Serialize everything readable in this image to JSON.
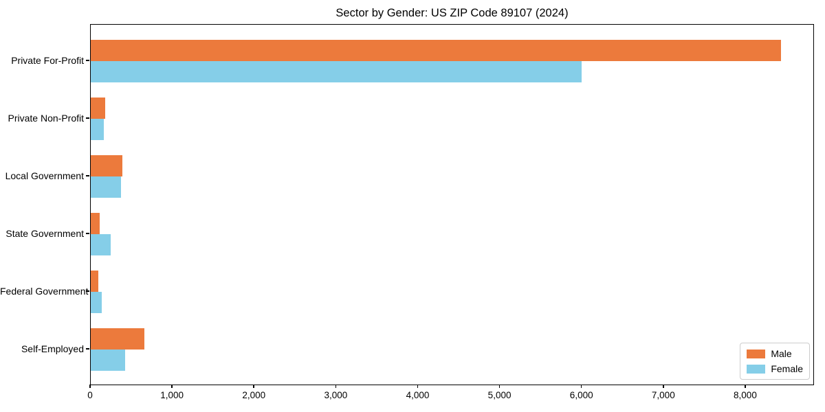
{
  "title": "Sector by Gender: US ZIP Code 89107 (2024)",
  "colors": {
    "male": "#ec7a3c",
    "female": "#85cee8",
    "spine": "#000000",
    "legend_border": "#cccccc",
    "background": "#ffffff"
  },
  "chart_data": {
    "type": "bar",
    "orientation": "horizontal",
    "title": "Sector by Gender: US ZIP Code 89107 (2024)",
    "categories": [
      "Private For-Profit",
      "Private Non-Profit",
      "Local Government",
      "State Government",
      "Federal Government",
      "Self-Employed"
    ],
    "series": [
      {
        "name": "Male",
        "color": "#ec7a3c",
        "values": [
          8430,
          175,
          385,
          110,
          95,
          655
        ]
      },
      {
        "name": "Female",
        "color": "#85cee8",
        "values": [
          5990,
          160,
          365,
          240,
          135,
          420
        ]
      }
    ],
    "xlabel": "",
    "ylabel": "",
    "xlim": [
      0,
      8840
    ],
    "xticks": [
      {
        "value": 0,
        "label": "0"
      },
      {
        "value": 1000,
        "label": "1,000"
      },
      {
        "value": 2000,
        "label": "2,000"
      },
      {
        "value": 3000,
        "label": "3,000"
      },
      {
        "value": 4000,
        "label": "4,000"
      },
      {
        "value": 5000,
        "label": "5,000"
      },
      {
        "value": 6000,
        "label": "6,000"
      },
      {
        "value": 7000,
        "label": "7,000"
      },
      {
        "value": 8000,
        "label": "8,000"
      }
    ],
    "grid": false,
    "legend_position": "lower right",
    "legend_items": [
      "Male",
      "Female"
    ]
  }
}
